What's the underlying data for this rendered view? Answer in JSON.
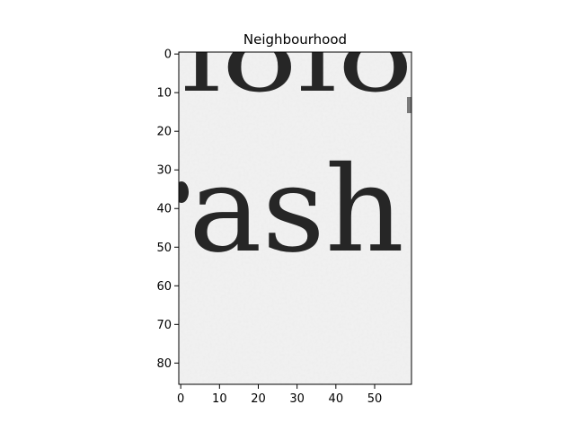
{
  "chart_data": {
    "type": "heatmap",
    "title": "Neighbourhood",
    "xlabel": "",
    "ylabel": "",
    "image_width": 60,
    "image_height": 86,
    "xlim": [
      -0.5,
      59.5
    ],
    "ylim": [
      85.5,
      -0.5
    ],
    "x_ticks": [
      0,
      10,
      20,
      30,
      40,
      50
    ],
    "y_ticks": [
      0,
      10,
      20,
      30,
      40,
      50,
      60,
      70,
      80
    ],
    "colormap": "gray",
    "background_color": "#f2f2f2",
    "ink_color": "#262626",
    "image_content": {
      "top_fragment": "lolo",
      "main_word": "ash"
    },
    "grid": false
  }
}
